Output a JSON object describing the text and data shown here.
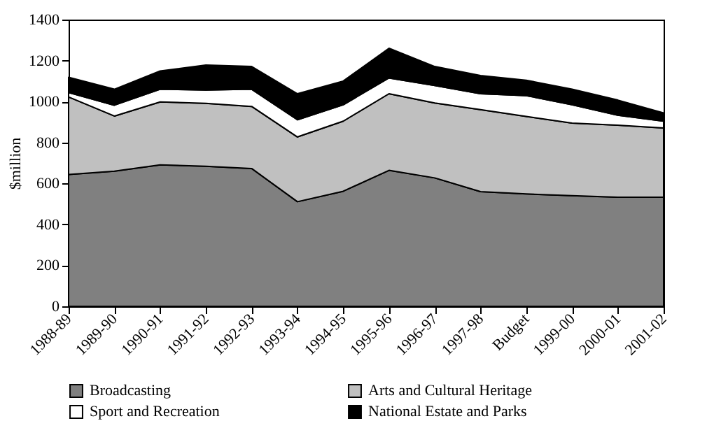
{
  "chart_data": {
    "type": "area",
    "stacked": true,
    "ylabel": "$million",
    "categories": [
      "1988-89",
      "1989-90",
      "1990-91",
      "1991-92",
      "1992-93",
      "1993-94",
      "1994-95",
      "1995-96",
      "1996-97",
      "1997-98",
      "Budget",
      "1999-00",
      "2000-01",
      "2001-02"
    ],
    "series": [
      {
        "name": "Broadcasting",
        "color": "#808080",
        "values": [
          644,
          660,
          691,
          684,
          673,
          511,
          562,
          664,
          627,
          560,
          549,
          540,
          533,
          533
        ]
      },
      {
        "name": "Arts and Cultural Heritage",
        "color": "#c0c0c0",
        "values": [
          378,
          269,
          307,
          307,
          303,
          316,
          342,
          374,
          366,
          400,
          378,
          355,
          351,
          338
        ]
      },
      {
        "name": "Sport and Recreation",
        "color": "#ffffff",
        "values": [
          22,
          53,
          62,
          65,
          84,
          84,
          80,
          77,
          85,
          78,
          102,
          89,
          49,
          33
        ]
      },
      {
        "name": "National Estate and Parks",
        "color": "#000000",
        "values": [
          74,
          78,
          89,
          122,
          111,
          127,
          116,
          145,
          93,
          89,
          75,
          76,
          74,
          40
        ]
      }
    ],
    "ylim": [
      0,
      1400
    ],
    "yticks": [
      0,
      200,
      400,
      600,
      800,
      1000,
      1200,
      1400
    ],
    "grid": false,
    "legend": "bottom"
  }
}
